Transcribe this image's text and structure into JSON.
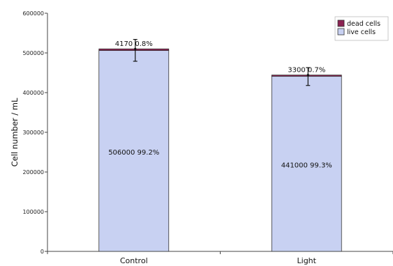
{
  "chart_data": {
    "type": "bar",
    "stacked": true,
    "title": "",
    "xlabel": "",
    "ylabel": "Cell number / mL",
    "ylim": [
      0,
      600000
    ],
    "yticks": [
      0,
      100000,
      200000,
      300000,
      400000,
      500000,
      600000
    ],
    "ytick_labels": [
      "0",
      "100000",
      "200000",
      "300000",
      "400000",
      "500000",
      "600000"
    ],
    "categories": [
      "Control",
      "Light"
    ],
    "series": [
      {
        "name": "live cells",
        "color": "#c8d1f2",
        "values": [
          506000,
          441000
        ],
        "labels": [
          "506000  99.2%",
          "441000  99.3%"
        ]
      },
      {
        "name": "dead cells",
        "color": "#8b2252",
        "values": [
          4170,
          3300
        ],
        "labels": [
          "4170  0.8%",
          "3300  0.7%"
        ]
      }
    ],
    "error_bars": {
      "center": [
        510170,
        444300
      ],
      "low": [
        479000,
        418000
      ],
      "high": [
        534000,
        463000
      ]
    },
    "legend_position": "top-right",
    "grid": false
  }
}
